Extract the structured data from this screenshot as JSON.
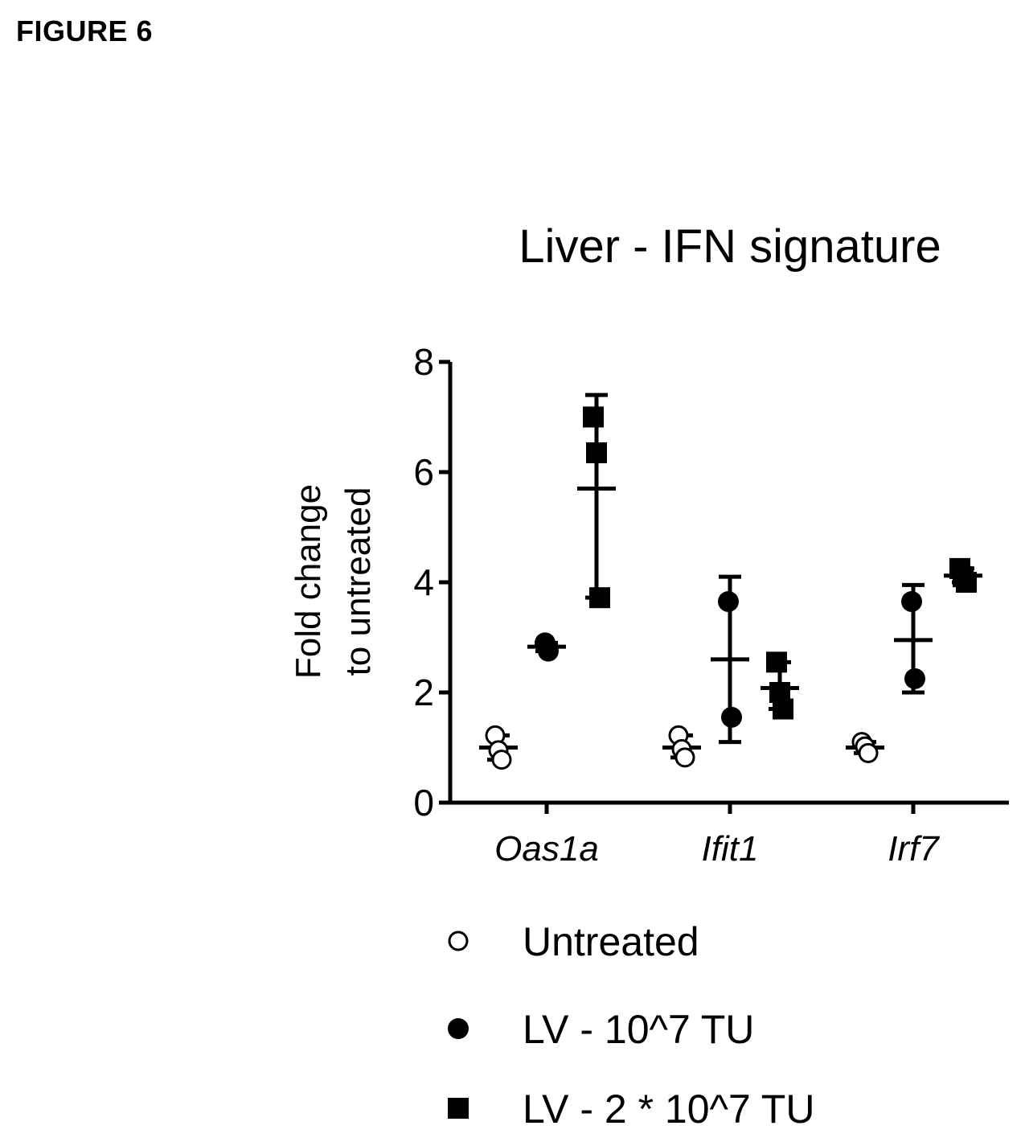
{
  "figure_label": "FIGURE 6",
  "chart_data": {
    "type": "scatter",
    "title": "Liver  - IFN signature",
    "ylabel_line1": "Fold change",
    "ylabel_line2": "to untreated",
    "xlabel": "",
    "ylim": [
      0,
      8
    ],
    "yticks": [
      0,
      2,
      4,
      6,
      8
    ],
    "categories": [
      "Oas1a",
      "Ifit1",
      "Irf7"
    ],
    "grid": false,
    "legend_position": "bottom",
    "series": [
      {
        "name": "Untreated",
        "marker": "circle-open",
        "points": [
          {
            "category": "Oas1a",
            "values": [
              1.22,
              0.95,
              0.78
            ],
            "mean": 1.0,
            "err": [
              0.78,
              1.22
            ]
          },
          {
            "category": "Ifit1",
            "values": [
              1.22,
              0.97,
              0.82
            ],
            "mean": 1.0,
            "err": [
              0.82,
              1.22
            ]
          },
          {
            "category": "Irf7",
            "values": [
              1.1,
              1.02,
              0.9
            ],
            "mean": 1.0,
            "err": [
              0.9,
              1.1
            ]
          }
        ]
      },
      {
        "name": "LV - 10^7 TU",
        "marker": "circle-filled",
        "points": [
          {
            "category": "Oas1a",
            "values": [
              2.9,
              2.75
            ],
            "mean": 2.83,
            "err": [
              2.75,
              2.9
            ]
          },
          {
            "category": "Ifit1",
            "values": [
              3.65,
              1.55
            ],
            "mean": 2.6,
            "err": [
              1.1,
              4.1
            ]
          },
          {
            "category": "Irf7",
            "values": [
              3.65,
              2.25
            ],
            "mean": 2.95,
            "err": [
              2.0,
              3.95
            ]
          }
        ]
      },
      {
        "name": "LV - 2 * 10^7 TU",
        "marker": "square-filled",
        "points": [
          {
            "category": "Oas1a",
            "values": [
              7.0,
              6.35,
              3.72
            ],
            "mean": 5.7,
            "err": [
              3.72,
              7.4
            ]
          },
          {
            "category": "Ifit1",
            "values": [
              2.55,
              2.0,
              1.7
            ],
            "mean": 2.08,
            "err": [
              1.7,
              2.55
            ]
          },
          {
            "category": "Irf7",
            "values": [
              4.25,
              4.1,
              4.0
            ],
            "mean": 4.12,
            "err": [
              4.0,
              4.25
            ]
          }
        ]
      }
    ]
  }
}
